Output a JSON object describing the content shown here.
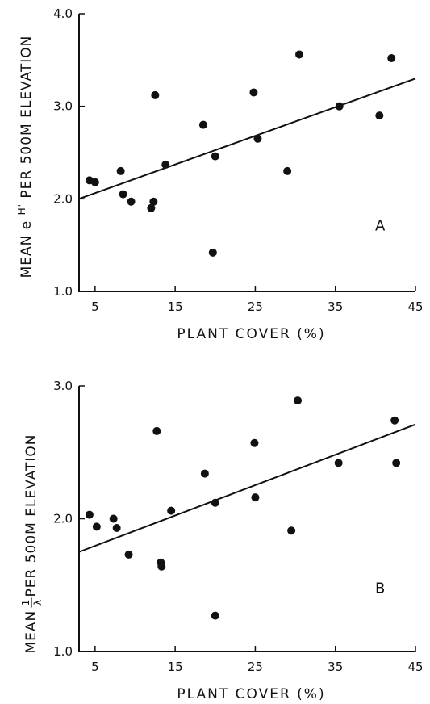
{
  "chart_data": [
    {
      "type": "scatter",
      "panel": "A",
      "xlabel": "PLANT  COVER (%)",
      "ylabel_parts": {
        "pre": "MEAN e",
        "sup": "H'",
        "post": " PER 500M ELEVATION"
      },
      "xlim": [
        3,
        45
      ],
      "ylim": [
        1.0,
        4.0
      ],
      "xticks": [
        5,
        15,
        25,
        35,
        45
      ],
      "yticks": [
        1.0,
        2.0,
        3.0,
        4.0
      ],
      "xtick_labels": [
        "5",
        "15",
        "25",
        "35",
        "45"
      ],
      "ytick_labels": [
        "1.0",
        "2.0",
        "3.0",
        "4.0"
      ],
      "grid": false,
      "points": [
        {
          "x": 4.3,
          "y": 2.2
        },
        {
          "x": 5.0,
          "y": 2.18
        },
        {
          "x": 8.2,
          "y": 2.3
        },
        {
          "x": 8.5,
          "y": 2.05
        },
        {
          "x": 9.5,
          "y": 1.97
        },
        {
          "x": 12.0,
          "y": 1.9
        },
        {
          "x": 12.3,
          "y": 1.97
        },
        {
          "x": 12.5,
          "y": 3.12
        },
        {
          "x": 13.8,
          "y": 2.37
        },
        {
          "x": 18.5,
          "y": 2.8
        },
        {
          "x": 19.7,
          "y": 1.42
        },
        {
          "x": 20.0,
          "y": 2.46
        },
        {
          "x": 24.8,
          "y": 3.15
        },
        {
          "x": 25.3,
          "y": 2.65
        },
        {
          "x": 29.0,
          "y": 2.3
        },
        {
          "x": 30.5,
          "y": 3.56
        },
        {
          "x": 35.5,
          "y": 3.0
        },
        {
          "x": 40.5,
          "y": 2.9
        },
        {
          "x": 42.0,
          "y": 3.52
        }
      ],
      "fit_line": {
        "x": [
          3,
          45
        ],
        "y": [
          2.0,
          3.3
        ]
      }
    },
    {
      "type": "scatter",
      "panel": "B",
      "xlabel": "PLANT  COVER (%)",
      "ylabel_parts": {
        "pre": "MEAN ",
        "frac_num": "1",
        "frac_den": "λ",
        "post": " PER 500M ELEVATION"
      },
      "xlim": [
        3,
        45
      ],
      "ylim": [
        1.0,
        3.0
      ],
      "xticks": [
        5,
        15,
        25,
        35,
        45
      ],
      "yticks": [
        1.0,
        2.0,
        3.0
      ],
      "xtick_labels": [
        "5",
        "15",
        "25",
        "35",
        "45"
      ],
      "ytick_labels": [
        "1.0",
        "2.0",
        "3.0"
      ],
      "grid": false,
      "points": [
        {
          "x": 4.3,
          "y": 2.03
        },
        {
          "x": 5.2,
          "y": 1.94
        },
        {
          "x": 7.3,
          "y": 2.0
        },
        {
          "x": 7.7,
          "y": 1.93
        },
        {
          "x": 9.2,
          "y": 1.73
        },
        {
          "x": 12.7,
          "y": 2.66
        },
        {
          "x": 13.2,
          "y": 1.67
        },
        {
          "x": 13.3,
          "y": 1.64
        },
        {
          "x": 14.5,
          "y": 2.06
        },
        {
          "x": 18.7,
          "y": 2.34
        },
        {
          "x": 20.0,
          "y": 2.12
        },
        {
          "x": 20.0,
          "y": 1.27
        },
        {
          "x": 24.9,
          "y": 2.57
        },
        {
          "x": 25.0,
          "y": 2.16
        },
        {
          "x": 29.5,
          "y": 1.91
        },
        {
          "x": 30.3,
          "y": 2.89
        },
        {
          "x": 35.4,
          "y": 2.42
        },
        {
          "x": 42.4,
          "y": 2.74
        },
        {
          "x": 42.6,
          "y": 2.42
        }
      ],
      "fit_line": {
        "x": [
          3,
          45
        ],
        "y": [
          1.75,
          2.71
        ]
      }
    }
  ]
}
